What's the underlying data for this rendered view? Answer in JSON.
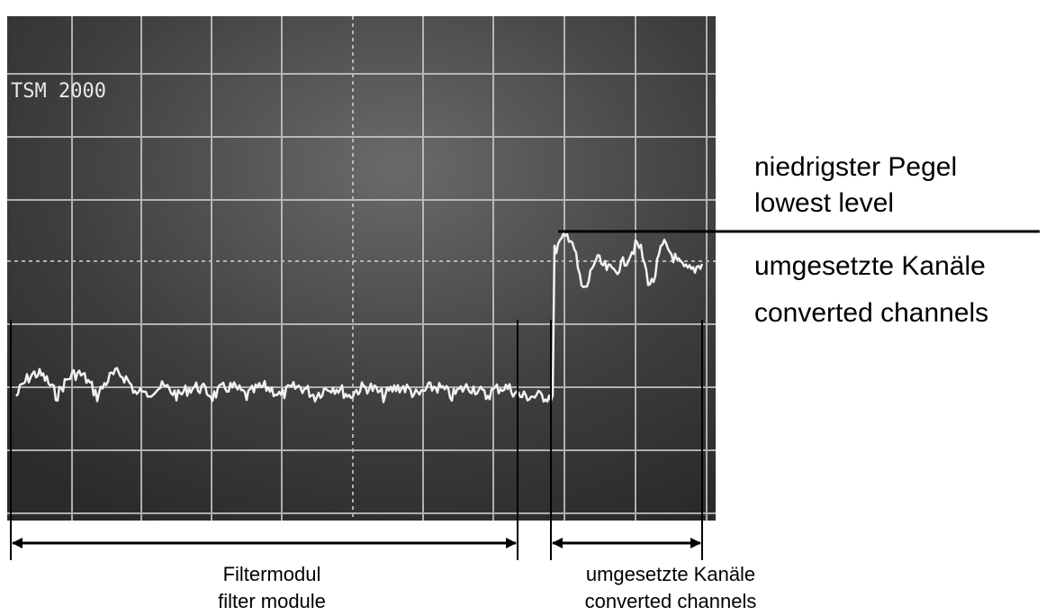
{
  "screen": {
    "label": "TSM 2000"
  },
  "level_annotation": {
    "german": "niedrigster Pegel",
    "english": "lowest level"
  },
  "channels_annotation": {
    "german": "umgesetzte Kanäle",
    "english": "converted channels"
  },
  "filter_span": {
    "german": "Filtermodul",
    "english": "filter module"
  },
  "channels_span": {
    "german": "umgesetzte Kanäle",
    "english": "converted channels"
  }
}
